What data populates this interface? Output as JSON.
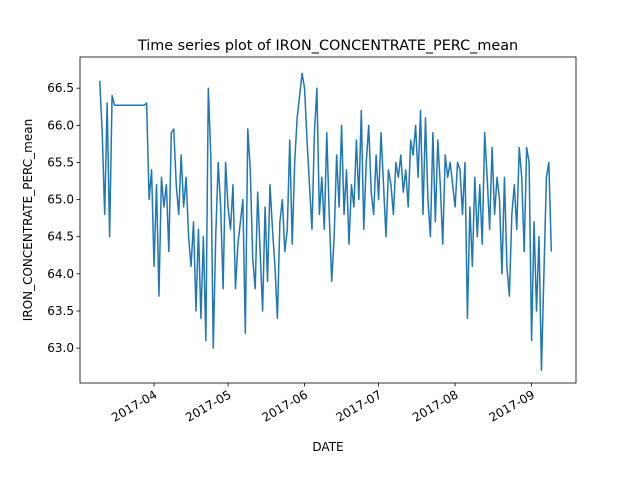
{
  "chart_data": {
    "type": "line",
    "title": "Time series plot of IRON_CONCENTRATE_PERC_mean",
    "x_label": "DATE",
    "y_label": "IRON_CONCENTRATE_PERC_mean",
    "xlim": [
      "2017-03-02",
      "2017-09-19"
    ],
    "xticks": [
      {
        "value": "2017-04-01",
        "label": "2017-04"
      },
      {
        "value": "2017-05-01",
        "label": "2017-05"
      },
      {
        "value": "2017-06-01",
        "label": "2017-06"
      },
      {
        "value": "2017-07-01",
        "label": "2017-07"
      },
      {
        "value": "2017-08-01",
        "label": "2017-08"
      },
      {
        "value": "2017-09-01",
        "label": "2017-09"
      }
    ],
    "ylim": [
      62.53,
      66.92
    ],
    "yticks": [
      {
        "value": 63,
        "label": "63.0"
      },
      63.5,
      {
        "value": 64,
        "label": "64.0"
      },
      64.5,
      {
        "value": 65,
        "label": "65.0"
      },
      65.5,
      {
        "value": 66,
        "label": "66.0"
      },
      66.5
    ],
    "x": [
      "2017-03-10",
      "2017-03-11",
      "2017-03-12",
      "2017-03-13",
      "2017-03-14",
      "2017-03-15",
      "2017-03-16",
      "2017-03-17",
      "2017-03-18",
      "2017-03-19",
      "2017-03-20",
      "2017-03-21",
      "2017-03-22",
      "2017-03-23",
      "2017-03-24",
      "2017-03-25",
      "2017-03-26",
      "2017-03-27",
      "2017-03-28",
      "2017-03-29",
      "2017-03-30",
      "2017-03-31",
      "2017-04-01",
      "2017-04-02",
      "2017-04-03",
      "2017-04-04",
      "2017-04-05",
      "2017-04-06",
      "2017-04-07",
      "2017-04-08",
      "2017-04-09",
      "2017-04-10",
      "2017-04-11",
      "2017-04-12",
      "2017-04-13",
      "2017-04-14",
      "2017-04-15",
      "2017-04-16",
      "2017-04-17",
      "2017-04-18",
      "2017-04-19",
      "2017-04-20",
      "2017-04-21",
      "2017-04-22",
      "2017-04-23",
      "2017-04-24",
      "2017-04-25",
      "2017-04-26",
      "2017-04-27",
      "2017-04-28",
      "2017-04-29",
      "2017-04-30",
      "2017-05-01",
      "2017-05-02",
      "2017-05-03",
      "2017-05-04",
      "2017-05-05",
      "2017-05-06",
      "2017-05-07",
      "2017-05-08",
      "2017-05-09",
      "2017-05-10",
      "2017-05-11",
      "2017-05-12",
      "2017-05-13",
      "2017-05-14",
      "2017-05-15",
      "2017-05-16",
      "2017-05-17",
      "2017-05-18",
      "2017-05-19",
      "2017-05-20",
      "2017-05-21",
      "2017-05-22",
      "2017-05-23",
      "2017-05-24",
      "2017-05-25",
      "2017-05-26",
      "2017-05-27",
      "2017-05-28",
      "2017-05-29",
      "2017-05-30",
      "2017-05-31",
      "2017-06-01",
      "2017-06-02",
      "2017-06-03",
      "2017-06-04",
      "2017-06-05",
      "2017-06-06",
      "2017-06-07",
      "2017-06-08",
      "2017-06-09",
      "2017-06-10",
      "2017-06-11",
      "2017-06-12",
      "2017-06-13",
      "2017-06-14",
      "2017-06-15",
      "2017-06-16",
      "2017-06-17",
      "2017-06-18",
      "2017-06-19",
      "2017-06-20",
      "2017-06-21",
      "2017-06-22",
      "2017-06-23",
      "2017-06-24",
      "2017-06-25",
      "2017-06-26",
      "2017-06-27",
      "2017-06-28",
      "2017-06-29",
      "2017-06-30",
      "2017-07-01",
      "2017-07-02",
      "2017-07-03",
      "2017-07-04",
      "2017-07-05",
      "2017-07-06",
      "2017-07-07",
      "2017-07-08",
      "2017-07-09",
      "2017-07-10",
      "2017-07-11",
      "2017-07-12",
      "2017-07-13",
      "2017-07-14",
      "2017-07-15",
      "2017-07-16",
      "2017-07-17",
      "2017-07-18",
      "2017-07-19",
      "2017-07-20",
      "2017-07-21",
      "2017-07-22",
      "2017-07-23",
      "2017-07-24",
      "2017-07-25",
      "2017-07-26",
      "2017-07-27",
      "2017-07-28",
      "2017-07-29",
      "2017-07-30",
      "2017-07-31",
      "2017-08-01",
      "2017-08-02",
      "2017-08-03",
      "2017-08-04",
      "2017-08-05",
      "2017-08-06",
      "2017-08-07",
      "2017-08-08",
      "2017-08-09",
      "2017-08-10",
      "2017-08-11",
      "2017-08-12",
      "2017-08-13",
      "2017-08-14",
      "2017-08-15",
      "2017-08-16",
      "2017-08-17",
      "2017-08-18",
      "2017-08-19",
      "2017-08-20",
      "2017-08-21",
      "2017-08-22",
      "2017-08-23",
      "2017-08-24",
      "2017-08-25",
      "2017-08-26",
      "2017-08-27",
      "2017-08-28",
      "2017-08-29",
      "2017-08-30",
      "2017-08-31",
      "2017-09-01",
      "2017-09-02",
      "2017-09-03",
      "2017-09-04",
      "2017-09-05",
      "2017-09-06",
      "2017-09-07",
      "2017-09-08",
      "2017-09-09"
    ],
    "color": "#1f77b4",
    "values": [
      66.6,
      65.9,
      64.8,
      66.3,
      64.5,
      66.4,
      66.27,
      66.27,
      66.27,
      66.27,
      66.27,
      66.27,
      66.27,
      66.27,
      66.27,
      66.27,
      66.27,
      66.27,
      66.27,
      66.3,
      65.0,
      65.4,
      64.1,
      65.2,
      63.7,
      65.3,
      64.9,
      65.2,
      64.3,
      65.9,
      65.95,
      65.2,
      64.8,
      65.6,
      64.9,
      65.3,
      64.5,
      64.1,
      64.7,
      63.5,
      64.6,
      63.4,
      64.5,
      63.1,
      66.5,
      65.6,
      63.0,
      64.5,
      65.5,
      64.9,
      63.8,
      65.5,
      64.9,
      64.6,
      65.2,
      63.8,
      64.4,
      64.7,
      65.0,
      63.2,
      65.95,
      65.4,
      64.2,
      63.8,
      65.1,
      64.3,
      63.5,
      64.9,
      63.9,
      65.2,
      64.6,
      64.1,
      63.4,
      64.7,
      65.0,
      64.3,
      64.6,
      65.8,
      64.4,
      65.5,
      66.1,
      66.4,
      66.7,
      66.5,
      65.8,
      65.2,
      64.6,
      65.9,
      66.5,
      64.8,
      65.3,
      64.6,
      65.9,
      64.8,
      63.9,
      64.5,
      65.6,
      64.9,
      66.0,
      64.8,
      65.4,
      64.4,
      65.2,
      64.9,
      65.8,
      65.0,
      66.2,
      64.6,
      65.5,
      66.0,
      65.1,
      64.8,
      65.6,
      65.0,
      65.9,
      65.2,
      64.5,
      65.4,
      65.2,
      64.8,
      65.5,
      65.3,
      65.6,
      65.1,
      65.4,
      64.9,
      65.8,
      65.6,
      66.0,
      65.3,
      66.2,
      64.8,
      66.1,
      65.0,
      64.5,
      65.9,
      64.7,
      65.8,
      65.2,
      64.4,
      65.6,
      65.3,
      65.5,
      65.2,
      64.9,
      65.5,
      65.4,
      64.8,
      65.5,
      63.4,
      64.9,
      64.1,
      65.3,
      64.5,
      65.2,
      64.4,
      65.9,
      65.3,
      64.6,
      65.7,
      64.8,
      65.3,
      65.0,
      64.0,
      65.3,
      64.1,
      63.7,
      64.8,
      65.2,
      64.6,
      65.7,
      65.3,
      64.3,
      65.7,
      65.5,
      63.1,
      64.7,
      63.5,
      64.5,
      62.7,
      64.0,
      65.3,
      65.5,
      64.3
    ]
  }
}
